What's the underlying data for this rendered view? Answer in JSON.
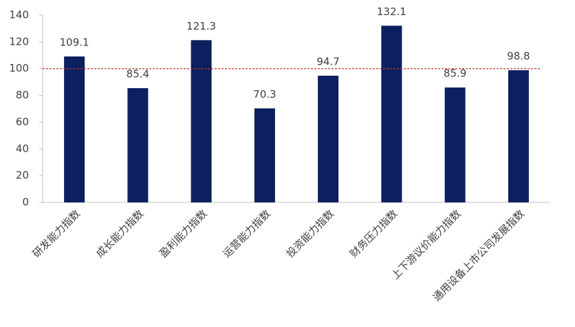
{
  "chart_data": {
    "type": "bar",
    "categories": [
      "研发能力指数",
      "成长能力指数",
      "盈利能力指数",
      "运营能力指数",
      "投资能力指数",
      "财务压力指数",
      "上下游议价能力指数",
      "通用设备上市公司发展指数"
    ],
    "values": [
      109.1,
      85.4,
      121.3,
      70.3,
      94.7,
      132.1,
      85.9,
      98.8
    ],
    "color": "#0c1f5e",
    "ylim": [
      0,
      140
    ],
    "yticks": [
      0,
      20,
      40,
      60,
      80,
      100,
      120,
      140
    ],
    "reference_line": 100,
    "reference_color": "#c0392b"
  }
}
